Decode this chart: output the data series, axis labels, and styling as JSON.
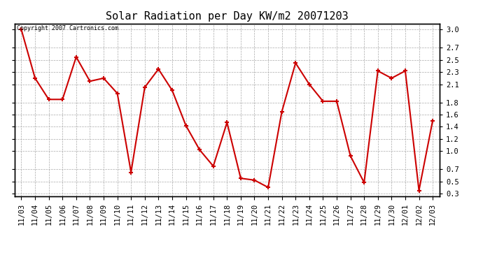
{
  "title": "Solar Radiation per Day KW/m2 20071203",
  "copyright": "Copyright 2007 Cartronics.com",
  "dates": [
    "11/03",
    "11/04",
    "11/05",
    "11/06",
    "11/07",
    "11/08",
    "11/09",
    "11/10",
    "11/11",
    "11/12",
    "11/13",
    "11/14",
    "11/15",
    "11/16",
    "11/17",
    "11/18",
    "11/19",
    "11/20",
    "11/21",
    "11/22",
    "11/23",
    "11/24",
    "11/25",
    "11/26",
    "11/27",
    "11/28",
    "11/29",
    "11/30",
    "12/01",
    "12/02",
    "12/03"
  ],
  "values": [
    3.0,
    2.2,
    1.85,
    1.85,
    2.55,
    2.15,
    2.2,
    1.95,
    0.65,
    2.05,
    2.35,
    2.0,
    1.42,
    1.02,
    0.75,
    1.47,
    0.55,
    0.52,
    0.4,
    1.65,
    2.45,
    2.1,
    1.82,
    1.82,
    0.92,
    0.48,
    2.32,
    2.2,
    2.32,
    0.35,
    1.5
  ],
  "line_color": "#cc0000",
  "marker": "+",
  "marker_size": 5,
  "line_width": 1.5,
  "bg_color": "#ffffff",
  "grid_color": "#aaaaaa",
  "yticks": [
    0.3,
    0.5,
    0.7,
    1.0,
    1.2,
    1.4,
    1.6,
    1.8,
    2.1,
    2.3,
    2.5,
    2.7,
    3.0
  ],
  "ylim": [
    0.25,
    3.1
  ],
  "title_fontsize": 11,
  "copyright_fontsize": 6,
  "tick_fontsize": 7.5
}
